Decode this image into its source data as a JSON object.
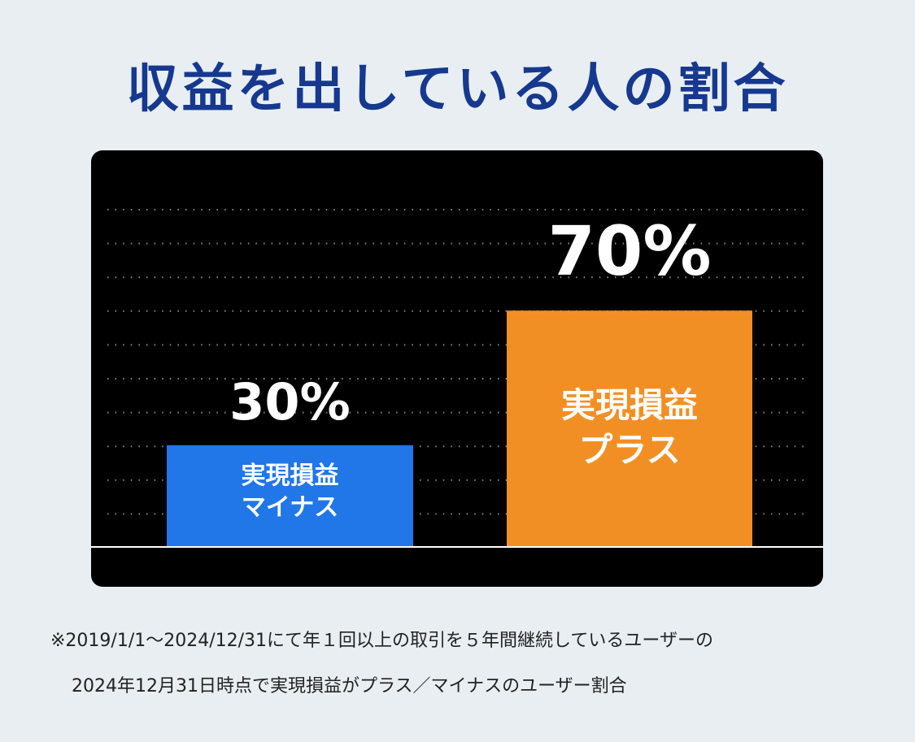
{
  "chart_data": {
    "type": "bar",
    "title": "収益を出している人の割合",
    "categories": [
      "実現損益\nマイナス",
      "実現損益\nプラス"
    ],
    "values": [
      30,
      70
    ],
    "value_labels": [
      "30%",
      "70%"
    ],
    "colors": [
      "#2176e8",
      "#f28f24"
    ]
  },
  "footnote": [
    "※2019/1/1〜2024/12/31にて年１回以上の取引を５年間継続しているユーザーの",
    "2024年12月31日時点で実現損益がプラス／マイナスのユーザー割合"
  ]
}
